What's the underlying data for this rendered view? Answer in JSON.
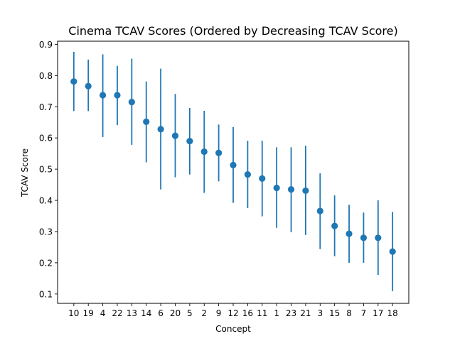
{
  "chart_data": {
    "type": "scatter",
    "title": "Cinema TCAV Scores (Ordered by Decreasing TCAV Score)",
    "xlabel": "Concept",
    "ylabel": "TCAV Score",
    "categories": [
      "10",
      "19",
      "4",
      "22",
      "13",
      "14",
      "6",
      "20",
      "5",
      "2",
      "9",
      "12",
      "16",
      "11",
      "1",
      "23",
      "21",
      "3",
      "15",
      "8",
      "7",
      "17",
      "18"
    ],
    "values": [
      0.781,
      0.766,
      0.737,
      0.737,
      0.715,
      0.652,
      0.628,
      0.607,
      0.59,
      0.556,
      0.552,
      0.513,
      0.483,
      0.47,
      0.44,
      0.435,
      0.431,
      0.366,
      0.318,
      0.293,
      0.28,
      0.28,
      0.236
    ],
    "err_low": [
      0.686,
      0.686,
      0.603,
      0.641,
      0.578,
      0.522,
      0.435,
      0.474,
      0.483,
      0.424,
      0.461,
      0.392,
      0.375,
      0.349,
      0.312,
      0.298,
      0.289,
      0.244,
      0.221,
      0.2,
      0.2,
      0.161,
      0.109
    ],
    "err_high": [
      0.876,
      0.851,
      0.868,
      0.831,
      0.854,
      0.781,
      0.822,
      0.741,
      0.696,
      0.687,
      0.643,
      0.635,
      0.591,
      0.591,
      0.57,
      0.57,
      0.575,
      0.487,
      0.416,
      0.386,
      0.361,
      0.4,
      0.363
    ],
    "ylim": [
      0.07,
      0.91
    ],
    "yticks": [
      0.1,
      0.2,
      0.3,
      0.4,
      0.5,
      0.6,
      0.7,
      0.8,
      0.9
    ],
    "ytick_labels": [
      "0.1",
      "0.2",
      "0.3",
      "0.4",
      "0.5",
      "0.6",
      "0.7",
      "0.8",
      "0.9"
    ],
    "grid": false,
    "legend": "none",
    "color": "#1f77b4"
  }
}
